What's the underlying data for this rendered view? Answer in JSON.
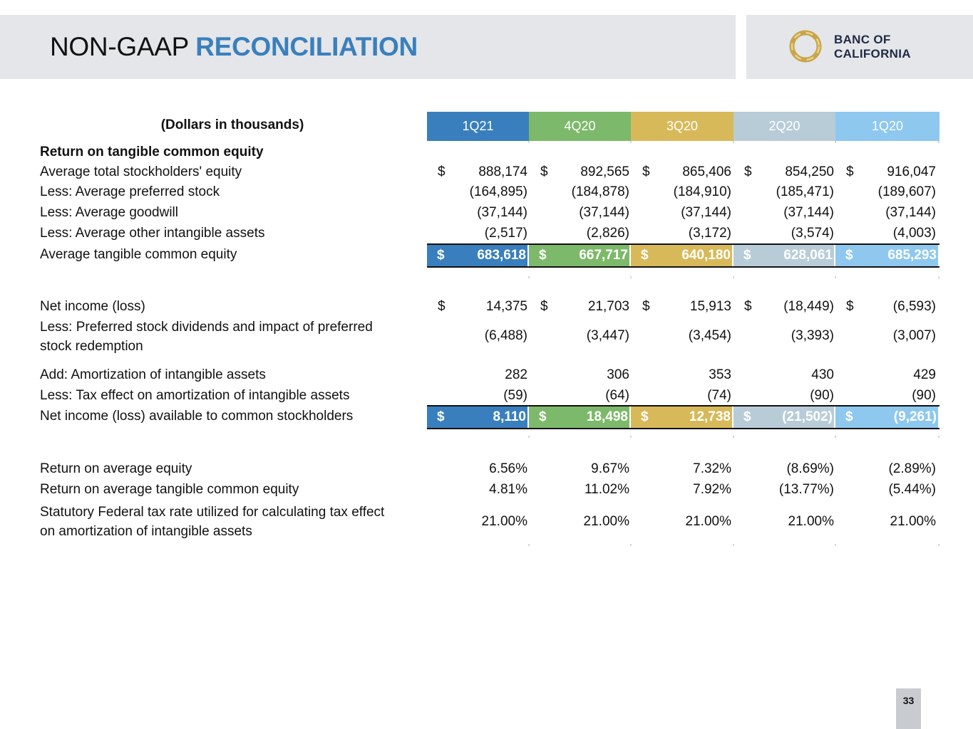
{
  "header": {
    "title_part1": "NON-GAAP ",
    "title_part2": "RECONCILIATION",
    "logo_line1": "BANC OF",
    "logo_line2": "CALIFORNIA"
  },
  "table": {
    "units_label": "(Dollars in thousands)",
    "columns": [
      "1Q21",
      "4Q20",
      "3Q20",
      "2Q20",
      "1Q20"
    ],
    "column_colors": [
      "#3a7fbd",
      "#7db96a",
      "#d8b95a",
      "#b8ccd8",
      "#8ec8ef"
    ],
    "dollar_sign": "$",
    "section_title": "Return on tangible common equity",
    "rows": [
      {
        "label": "Average total stockholders' equity",
        "values": [
          "888,174",
          "892,565",
          "865,406",
          "854,250",
          "916,047"
        ],
        "dollar": true
      },
      {
        "label": "Less: Average preferred stock",
        "values": [
          "(164,895)",
          "(184,878)",
          "(184,910)",
          "(185,471)",
          "(189,607)"
        ]
      },
      {
        "label": "Less: Average goodwill",
        "values": [
          "(37,144)",
          "(37,144)",
          "(37,144)",
          "(37,144)",
          "(37,144)"
        ]
      },
      {
        "label": "Less: Average other intangible assets",
        "values": [
          "(2,517)",
          "(2,826)",
          "(3,172)",
          "(3,574)",
          "(4,003)"
        ]
      },
      {
        "label": "Average tangible common equity",
        "values": [
          "683,618",
          "667,717",
          "640,180",
          "628,061",
          "685,293"
        ],
        "total": true
      },
      {
        "label": "Net income (loss)",
        "values": [
          "14,375",
          "21,703",
          "15,913",
          "(18,449)",
          "(6,593)"
        ],
        "dollar": true
      },
      {
        "label_line1": "Less: Preferred stock dividends and impact of preferred",
        "label_line2": "stock redemption",
        "values": [
          "(6,488)",
          "(3,447)",
          "(3,454)",
          "(3,393)",
          "(3,007)"
        ]
      },
      {
        "label": "Add: Amortization of intangible assets",
        "values": [
          "282",
          "306",
          "353",
          "430",
          "429"
        ]
      },
      {
        "label": "Less: Tax effect on amortization of intangible assets",
        "values": [
          "(59)",
          "(64)",
          "(74)",
          "(90)",
          "(90)"
        ]
      },
      {
        "label": "Net income (loss) available to common stockholders",
        "values": [
          "8,110",
          "18,498",
          "12,738",
          "(21,502)",
          "(9,261)"
        ],
        "total": true
      },
      {
        "label": "Return on average equity",
        "values": [
          "6.56%",
          "9.67%",
          "7.32%",
          "(8.69%)",
          "(2.89%)"
        ]
      },
      {
        "label": "Return on average tangible common equity",
        "values": [
          "4.81%",
          "11.02%",
          "7.92%",
          "(13.77%)",
          "(5.44%)"
        ]
      },
      {
        "label_line1": "Statutory Federal tax rate utilized for calculating tax effect",
        "label_line2": "on amortization of intangible assets",
        "values": [
          "21.00%",
          "21.00%",
          "21.00%",
          "21.00%",
          "21.00%"
        ]
      }
    ]
  },
  "footer": {
    "page_number": "33"
  }
}
